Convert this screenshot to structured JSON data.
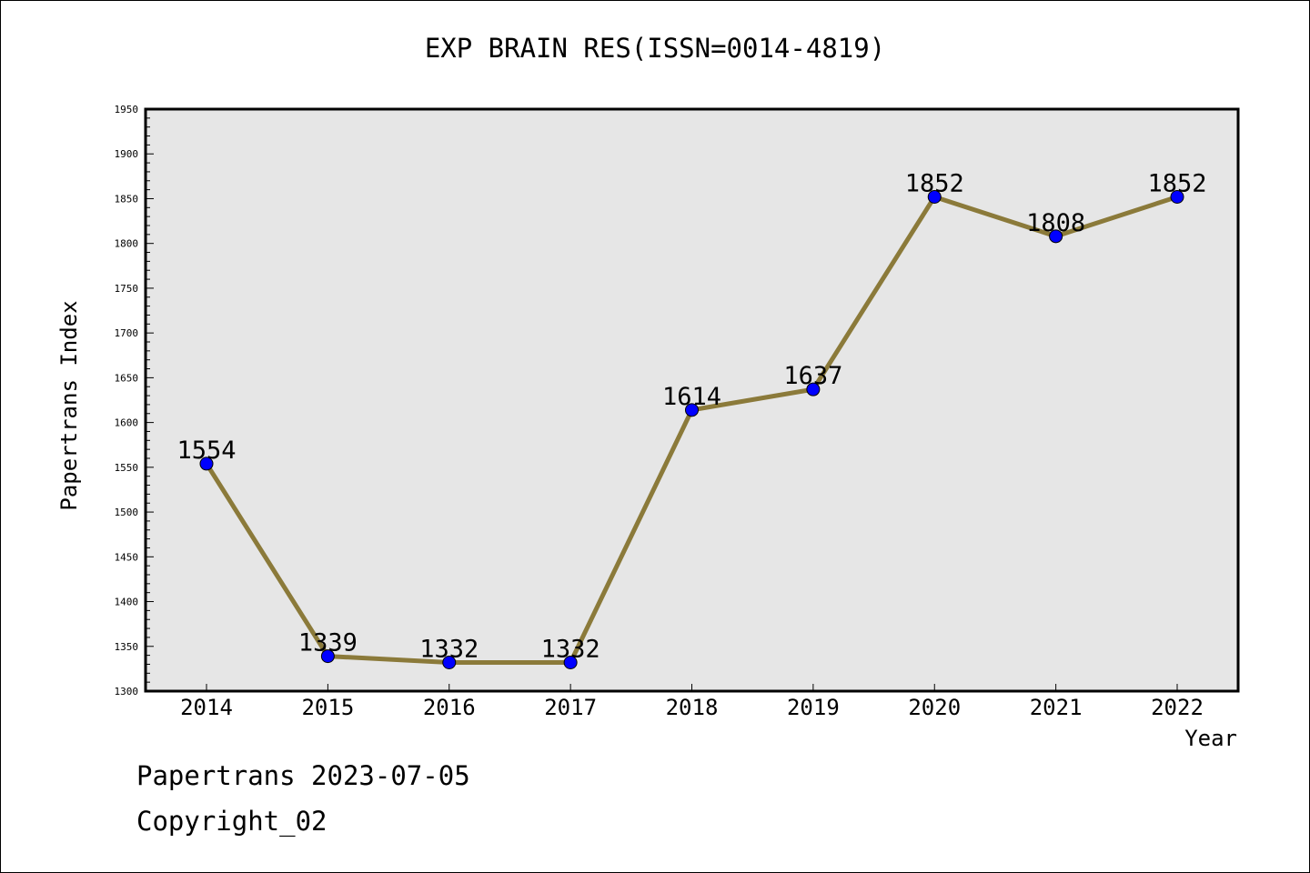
{
  "chart_data": {
    "type": "line",
    "title": "EXP BRAIN RES(ISSN=0014-4819)",
    "xlabel": "Year",
    "ylabel": "Papertrans Index",
    "categories": [
      "2014",
      "2015",
      "2016",
      "2017",
      "2018",
      "2019",
      "2020",
      "2021",
      "2022"
    ],
    "series": [
      {
        "values": [
          1554,
          1339,
          1332,
          1332,
          1614,
          1637,
          1852,
          1808,
          1852
        ]
      }
    ],
    "ylim": [
      1300,
      1950
    ],
    "yticks": [
      1300,
      1350,
      1400,
      1450,
      1500,
      1550,
      1600,
      1650,
      1700,
      1750,
      1800,
      1850,
      1900,
      1950
    ],
    "grid": false,
    "legend": "none",
    "colors": {
      "line": "#8b7a3a",
      "marker": "#0000ff",
      "plot_bg": "#e6e6e6"
    }
  },
  "footer": {
    "line1": "Papertrans 2023-07-05",
    "line2": "Copyright_02"
  }
}
